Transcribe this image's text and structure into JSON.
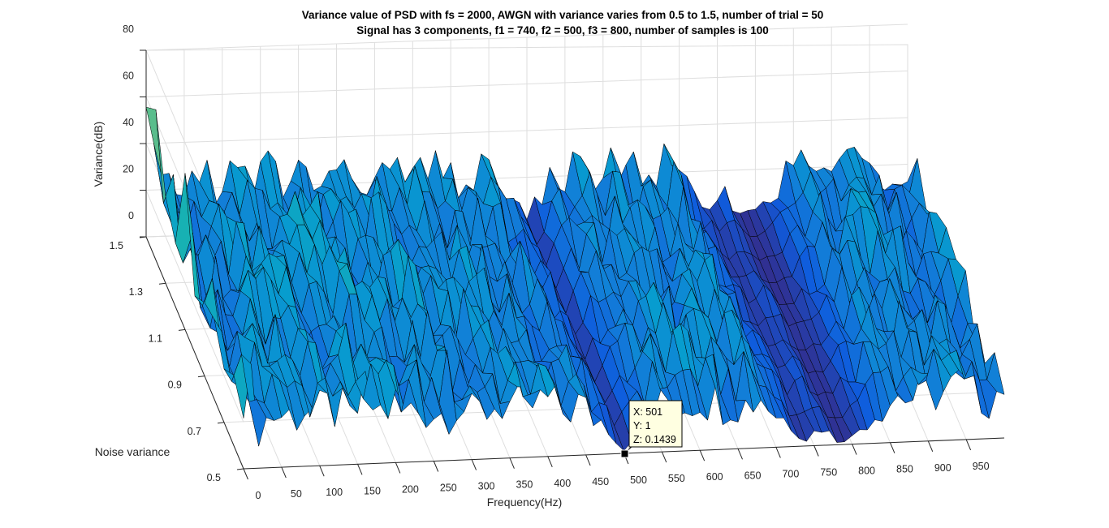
{
  "chart_data": {
    "type": "surface",
    "title": [
      "Variance value of PSD with fs = 2000, AWGN with variance varies from 0.5 to 1.5, number of trial = 50",
      "Signal has 3 components, f1 = 740, f2 = 500, f3 = 800, number of samples is 100"
    ],
    "xlabel": "Frequency(Hz)",
    "ylabel": "Noise variance",
    "zlabel": "Variance(dB)",
    "xlim": [
      0,
      1000
    ],
    "ylim": [
      0.5,
      1.5
    ],
    "zlim": [
      0,
      80
    ],
    "x_ticks": [
      "0",
      "50",
      "100",
      "150",
      "200",
      "250",
      "300",
      "350",
      "400",
      "450",
      "500",
      "550",
      "600",
      "650",
      "700",
      "750",
      "800",
      "850",
      "900",
      "950"
    ],
    "y_ticks": [
      "0.5",
      "0.7",
      "0.9",
      "1.1",
      "1.3",
      "1.5"
    ],
    "z_ticks": [
      "0",
      "20",
      "40",
      "60",
      "80"
    ],
    "grid": true,
    "colormap": "parula",
    "signal_components_hz": [
      500,
      740,
      800
    ],
    "series": [
      {
        "x": [
          0,
          20,
          40,
          60,
          80,
          100,
          120,
          140,
          160,
          180,
          200,
          220,
          240,
          260,
          280,
          300,
          320,
          340,
          360,
          380,
          400,
          420,
          440,
          460,
          480,
          500,
          520,
          540,
          560,
          580,
          600,
          620,
          640,
          660,
          680,
          700,
          720,
          740,
          760,
          780,
          800,
          820,
          840,
          860,
          880,
          900,
          920,
          940,
          960,
          980,
          1000
        ],
        "peak_z_db": [
          62,
          24,
          32,
          30,
          36,
          30,
          34,
          26,
          38,
          30,
          34,
          30,
          32,
          28,
          36,
          26,
          30,
          34,
          28,
          30,
          32,
          26,
          30,
          22,
          18,
          2,
          20,
          26,
          30,
          28,
          34,
          28,
          30,
          26,
          32,
          20,
          14,
          4,
          12,
          2,
          4,
          14,
          22,
          28,
          26,
          30,
          28,
          32,
          26,
          22,
          34
        ]
      }
    ],
    "datatip": {
      "x": "X: 501",
      "y": "Y: 1",
      "z": "Z: 0.1439"
    }
  }
}
